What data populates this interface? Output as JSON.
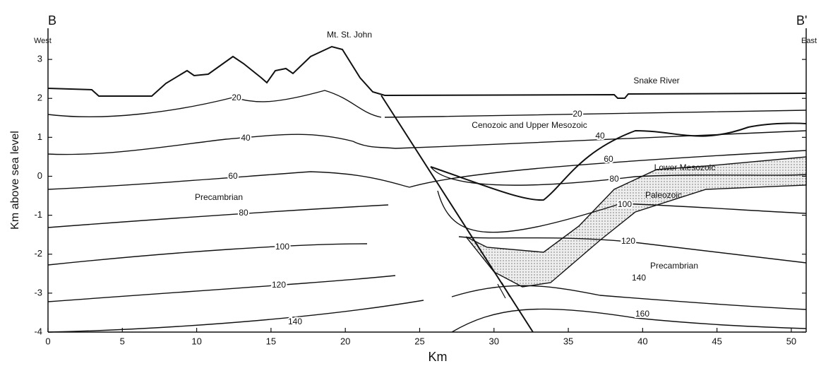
{
  "header": {
    "left_mark": "B",
    "right_mark": "B'",
    "left_direction": "West",
    "right_direction": "East",
    "peak": "Mt. St. John",
    "river": "Snake River"
  },
  "axes": {
    "x_label": "Km",
    "y_label": "Km above sea level",
    "xlim": [
      0,
      51
    ],
    "xticks": [
      0,
      5,
      10,
      15,
      20,
      25,
      30,
      35,
      40,
      45,
      50
    ],
    "ylim": [
      -4,
      3.8
    ],
    "yticks": [
      3,
      2,
      1,
      0,
      -1,
      -2,
      -3,
      -4
    ]
  },
  "units": {
    "upper": "Cenozoic and Upper Mesozoic",
    "lower_mesozoic": "Lower Mesozoic",
    "paleozoic": "Paleozoic",
    "precambrian_west": "Precambrian",
    "precambrian_east": "Precambrian"
  },
  "isotherms_west": [
    20,
    40,
    60,
    80,
    100,
    120,
    140
  ],
  "isotherms_east": [
    20,
    40,
    60,
    80,
    100,
    120,
    140,
    160
  ]
}
